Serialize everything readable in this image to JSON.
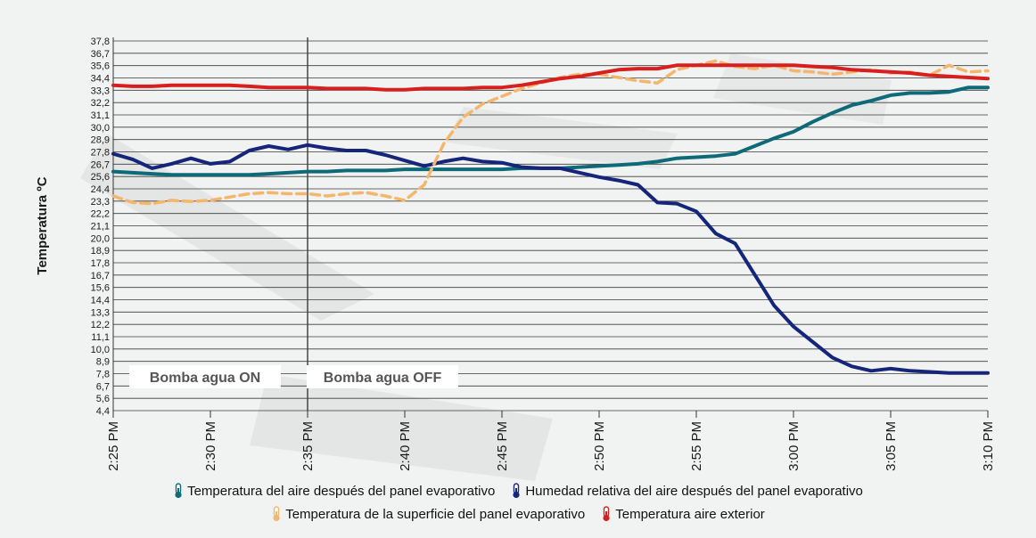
{
  "chart_data": {
    "type": "line",
    "ylabel": "Temperatura ºC",
    "xlabel": "",
    "y_ticks": [
      "4,4",
      "5,6",
      "6,7",
      "7,8",
      "8,9",
      "10,0",
      "11,1",
      "12,2",
      "13,3",
      "14,4",
      "15,6",
      "16,7",
      "17,8",
      "18,9",
      "20,0",
      "21,1",
      "22,2",
      "23,3",
      "24,4",
      "25,6",
      "26,7",
      "27,8",
      "28,9",
      "30,0",
      "31,1",
      "32,2",
      "33,3",
      "34,4",
      "35,6",
      "36,7",
      "37,8"
    ],
    "ylim": [
      4.4,
      37.8
    ],
    "x_ticks": [
      "2:25 PM",
      "2:30 PM",
      "2:35 PM",
      "2:40 PM",
      "2:45 PM",
      "2:50 PM",
      "2:55 PM",
      "3:00 PM",
      "3:05 PM",
      "3:10 PM"
    ],
    "x_range_minutes_from_first_tick": [
      0,
      45
    ],
    "grid": "horizontal",
    "regions": [
      {
        "label": "Bomba agua ON",
        "from": 0,
        "to": 10
      },
      {
        "label": "Bomba agua OFF",
        "from": 10,
        "to": 45
      }
    ],
    "legend_position": "bottom",
    "series": [
      {
        "name": "Temperatura del aire después del panel evaporativo",
        "color": "#0e6a78",
        "x": [
          0,
          1,
          2,
          3,
          4,
          5,
          6,
          7,
          8,
          9,
          10,
          11,
          12,
          13,
          14,
          15,
          16,
          17,
          18,
          19,
          20,
          21,
          22,
          23,
          24,
          25,
          26,
          27,
          28,
          29,
          30,
          31,
          32,
          33,
          34,
          35,
          36,
          37,
          38,
          39,
          40,
          41,
          42,
          43,
          44,
          45
        ],
        "y": [
          26.0,
          25.9,
          25.8,
          25.7,
          25.7,
          25.7,
          25.7,
          25.7,
          25.8,
          25.9,
          26.0,
          26.0,
          26.1,
          26.1,
          26.1,
          26.2,
          26.2,
          26.2,
          26.2,
          26.2,
          26.2,
          26.3,
          26.3,
          26.3,
          26.4,
          26.5,
          26.6,
          26.7,
          26.9,
          27.2,
          27.3,
          27.4,
          27.6,
          28.3,
          29.0,
          29.6,
          30.5,
          31.3,
          32.0,
          32.4,
          32.9,
          33.1,
          33.1,
          33.2,
          33.6,
          33.6
        ]
      },
      {
        "name": "Humedad relativa del aire después del panel evaporativo",
        "color": "#15267a",
        "x": [
          0,
          1,
          2,
          3,
          4,
          5,
          6,
          7,
          8,
          9,
          10,
          11,
          12,
          13,
          14,
          15,
          16,
          17,
          18,
          19,
          20,
          21,
          22,
          23,
          24,
          25,
          26,
          27,
          28,
          29,
          30,
          31,
          32,
          33,
          34,
          35,
          36,
          37,
          38,
          39,
          40,
          41,
          42,
          43,
          44,
          45
        ],
        "y": [
          27.6,
          27.1,
          26.3,
          26.7,
          27.2,
          26.7,
          26.9,
          27.9,
          28.3,
          28.0,
          28.4,
          28.1,
          27.9,
          27.9,
          27.5,
          27.0,
          26.5,
          26.9,
          27.2,
          26.9,
          26.8,
          26.4,
          26.3,
          26.3,
          25.9,
          25.5,
          25.2,
          24.8,
          23.2,
          23.1,
          22.4,
          20.4,
          19.5,
          16.7,
          13.9,
          12.0,
          10.6,
          9.2,
          8.4,
          8.0,
          8.2,
          8.0,
          7.9,
          7.8,
          7.8,
          7.8
        ]
      },
      {
        "name": "Temperatura de la superficie del panel evaporativo",
        "color": "#f5b66c",
        "dashed": true,
        "x": [
          0,
          1,
          2,
          3,
          4,
          5,
          6,
          7,
          8,
          9,
          10,
          11,
          12,
          13,
          14,
          15,
          16,
          17,
          18,
          19,
          20,
          21,
          22,
          23,
          24,
          25,
          26,
          27,
          28,
          29,
          30,
          31,
          32,
          33,
          34,
          35,
          36,
          37,
          38,
          39,
          40,
          41,
          42,
          43,
          44,
          45
        ],
        "y": [
          23.8,
          23.2,
          23.1,
          23.4,
          23.3,
          23.4,
          23.7,
          24.0,
          24.1,
          24.0,
          24.0,
          23.8,
          24.0,
          24.1,
          23.8,
          23.4,
          24.8,
          28.5,
          30.9,
          32.1,
          32.8,
          33.5,
          34.0,
          34.5,
          34.8,
          34.8,
          34.5,
          34.2,
          34.0,
          35.2,
          35.6,
          36.0,
          35.5,
          35.3,
          35.6,
          35.1,
          35.0,
          34.8,
          35.0,
          35.2,
          34.9,
          35.0,
          34.7,
          35.6,
          35.0,
          35.1
        ]
      },
      {
        "name": "Temperatura aire exterior",
        "color": "#d81f1f",
        "x": [
          0,
          1,
          2,
          3,
          4,
          5,
          6,
          7,
          8,
          9,
          10,
          11,
          12,
          13,
          14,
          15,
          16,
          17,
          18,
          19,
          20,
          21,
          22,
          23,
          24,
          25,
          26,
          27,
          28,
          29,
          30,
          31,
          32,
          33,
          34,
          35,
          36,
          37,
          38,
          39,
          40,
          41,
          42,
          43,
          44,
          45
        ],
        "y": [
          33.8,
          33.7,
          33.7,
          33.8,
          33.8,
          33.8,
          33.8,
          33.7,
          33.6,
          33.6,
          33.6,
          33.5,
          33.5,
          33.5,
          33.4,
          33.4,
          33.5,
          33.5,
          33.5,
          33.6,
          33.6,
          33.8,
          34.1,
          34.4,
          34.6,
          34.9,
          35.2,
          35.3,
          35.3,
          35.6,
          35.6,
          35.6,
          35.6,
          35.6,
          35.6,
          35.6,
          35.5,
          35.4,
          35.2,
          35.1,
          35.0,
          34.9,
          34.7,
          34.6,
          34.5,
          34.4
        ]
      }
    ]
  }
}
